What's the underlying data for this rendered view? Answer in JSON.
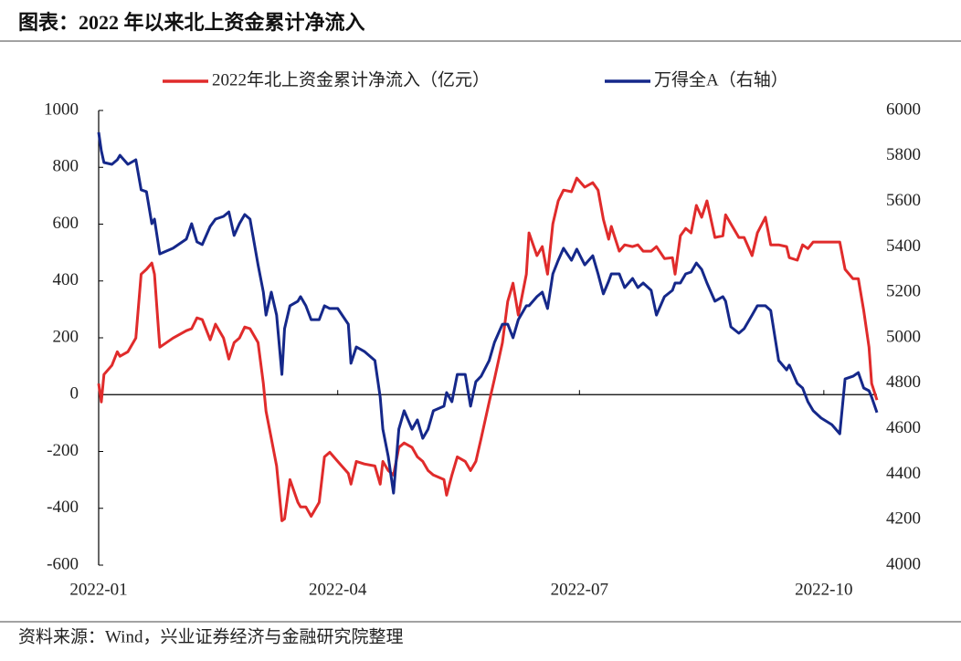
{
  "chart_data": {
    "type": "line",
    "title": "图表：2022 年以来北上资金累计净流入",
    "source": "资料来源：Wind，兴业证券经济与金融研究院整理",
    "legend": "top",
    "x": [
      0,
      1,
      2,
      5,
      7,
      8,
      11,
      14,
      16,
      18,
      20,
      21,
      23,
      28,
      33,
      35,
      37,
      39,
      42,
      44,
      47,
      49,
      51,
      53,
      55,
      57,
      60,
      62,
      63,
      65,
      67,
      69,
      70,
      72,
      75,
      76,
      78,
      80,
      83,
      85,
      87,
      90,
      94,
      95,
      97,
      100,
      104,
      106,
      107,
      109,
      111,
      113,
      115,
      118,
      120,
      122,
      124,
      126,
      130,
      131,
      133,
      135,
      138,
      140,
      142,
      144,
      147,
      149,
      152,
      154,
      156,
      158,
      161,
      162,
      165,
      167,
      169,
      171,
      173,
      175,
      178,
      180,
      183,
      186,
      188,
      190,
      192,
      193,
      196,
      198,
      201,
      203,
      205,
      208,
      210,
      213,
      216,
      217,
      219,
      221,
      223,
      225,
      227,
      229,
      232,
      235,
      236,
      238,
      241,
      243,
      246,
      248,
      251,
      253,
      256,
      259,
      260,
      263,
      265,
      267,
      269,
      272,
      276,
      279,
      281,
      284,
      286,
      288,
      290,
      291,
      293
    ],
    "xlim": [
      0,
      293
    ],
    "xticks": [
      {
        "value": 0,
        "label": "2022-01"
      },
      {
        "value": 90,
        "label": "2022-04"
      },
      {
        "value": 181,
        "label": "2022-07"
      },
      {
        "value": 273,
        "label": "2022-10"
      }
    ],
    "ylim": [
      -600,
      1000
    ],
    "yticks": [
      -600,
      -400,
      -200,
      0,
      200,
      400,
      600,
      800,
      1000
    ],
    "y2lim": [
      4000,
      6000
    ],
    "y2ticks": [
      4000,
      4200,
      4400,
      4600,
      4800,
      5000,
      5200,
      5400,
      5600,
      5800,
      6000
    ],
    "series": [
      {
        "name": "2022年北上资金累计净流入（亿元）",
        "color": "#e02b2b",
        "values": [
          39,
          -26,
          71,
          103,
          151,
          135,
          151,
          199,
          424,
          441,
          463,
          424,
          167,
          199,
          225,
          232,
          270,
          264,
          193,
          248,
          199,
          125,
          183,
          199,
          238,
          232,
          183,
          39,
          -58,
          -154,
          -251,
          -444,
          -437,
          -299,
          -379,
          -395,
          -395,
          -428,
          -379,
          -219,
          -203,
          -235,
          -277,
          -315,
          -235,
          -244,
          -251,
          -315,
          -235,
          -267,
          -283,
          -186,
          -170,
          -186,
          -219,
          -235,
          -267,
          -283,
          -299,
          -354,
          -283,
          -219,
          -235,
          -267,
          -235,
          -154,
          -26,
          55,
          183,
          328,
          392,
          280,
          424,
          569,
          489,
          521,
          424,
          601,
          682,
          720,
          714,
          762,
          730,
          746,
          720,
          617,
          547,
          592,
          505,
          527,
          521,
          527,
          505,
          505,
          521,
          479,
          482,
          424,
          559,
          585,
          569,
          666,
          624,
          682,
          553,
          559,
          633,
          601,
          553,
          553,
          489,
          569,
          624,
          527,
          527,
          521,
          482,
          473,
          527,
          514,
          537,
          537,
          537,
          537,
          441,
          408,
          408,
          296,
          167,
          39,
          -19
        ]
      },
      {
        "name": "万得全A（右轴）",
        "color": "#15288a",
        "axis": "y2",
        "values": [
          5904,
          5823,
          5771,
          5763,
          5783,
          5803,
          5763,
          5783,
          5651,
          5643,
          5502,
          5522,
          5369,
          5394,
          5434,
          5502,
          5422,
          5410,
          5490,
          5522,
          5534,
          5554,
          5450,
          5502,
          5542,
          5522,
          5321,
          5201,
          5100,
          5201,
          5100,
          4839,
          5040,
          5141,
          5161,
          5181,
          5141,
          5080,
          5080,
          5141,
          5129,
          5129,
          5060,
          4888,
          4960,
          4940,
          4900,
          4739,
          4598,
          4478,
          4317,
          4598,
          4679,
          4598,
          4639,
          4558,
          4598,
          4679,
          4699,
          4759,
          4719,
          4839,
          4839,
          4699,
          4807,
          4831,
          4900,
          4980,
          5060,
          5060,
          5000,
          5080,
          5141,
          5141,
          5181,
          5201,
          5129,
          5281,
          5341,
          5394,
          5341,
          5390,
          5321,
          5361,
          5281,
          5193,
          5249,
          5281,
          5281,
          5221,
          5261,
          5221,
          5241,
          5209,
          5100,
          5181,
          5209,
          5241,
          5241,
          5281,
          5289,
          5329,
          5301,
          5241,
          5161,
          5181,
          5161,
          5048,
          5020,
          5040,
          5100,
          5141,
          5141,
          5120,
          4900,
          4859,
          4880,
          4799,
          4779,
          4719,
          4679,
          4647,
          4618,
          4578,
          4819,
          4831,
          4847,
          4779,
          4767,
          4739,
          4671
        ]
      }
    ]
  }
}
